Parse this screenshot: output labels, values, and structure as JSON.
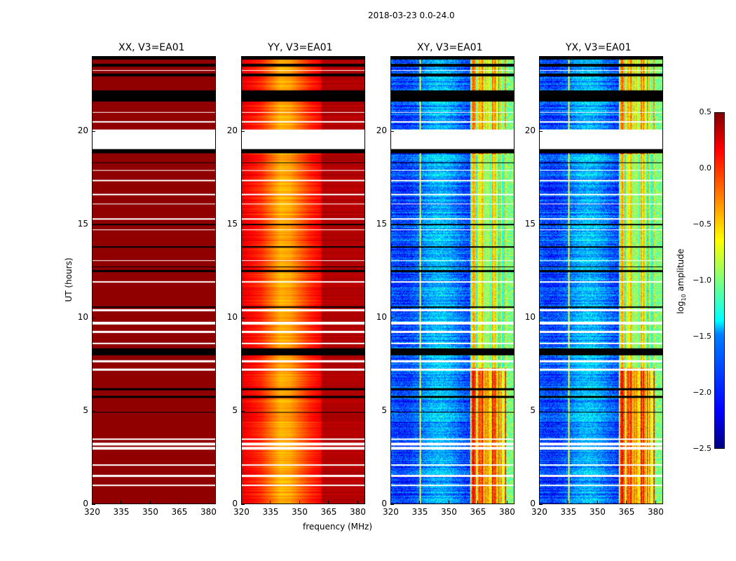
{
  "chart_data": {
    "type": "heatmap",
    "title": "2018-03-23 0.0-24.0",
    "xlabel": "frequency (MHz)",
    "ylabel": "UT (hours)",
    "xlim": [
      320,
      384
    ],
    "ylim": [
      0,
      24
    ],
    "xticks": [
      "320",
      "335",
      "350",
      "365",
      "380"
    ],
    "xtick_values": [
      320,
      335,
      350,
      365,
      380
    ],
    "yticks": [
      "0",
      "5",
      "10",
      "15",
      "20"
    ],
    "ytick_values": [
      0,
      5,
      10,
      15,
      20
    ],
    "colorbar": {
      "label_main": "log",
      "label_sub": "10",
      "label_rest": " amplitude",
      "range": [
        -2.5,
        0.5
      ],
      "ticks": [
        "0.5",
        "0.0",
        "−0.5",
        "−1.0",
        "−1.5",
        "−2.0",
        "−2.5"
      ],
      "tick_values": [
        0.5,
        0.0,
        -0.5,
        -1.0,
        -1.5,
        -2.0,
        -2.5
      ],
      "colormap": "jet"
    },
    "flagged_hours_white": [
      [
        19.05,
        20.1
      ],
      [
        0.95,
        1.05
      ],
      [
        1.45,
        1.55
      ],
      [
        2.05,
        2.12
      ],
      [
        2.9,
        3.05
      ],
      [
        3.15,
        3.3
      ],
      [
        3.45,
        3.5
      ],
      [
        7.15,
        7.25
      ],
      [
        7.6,
        7.7
      ],
      [
        8.6,
        8.65
      ],
      [
        9.2,
        9.3
      ],
      [
        9.65,
        9.8
      ],
      [
        10.35,
        10.45
      ],
      [
        11.9,
        11.95
      ],
      [
        13.05,
        13.1
      ],
      [
        14.7,
        14.75
      ],
      [
        15.25,
        15.35
      ],
      [
        16.1,
        16.15
      ],
      [
        16.6,
        16.65
      ],
      [
        17.35,
        17.4
      ],
      [
        17.9,
        17.95
      ],
      [
        20.5,
        20.55
      ],
      [
        21.0,
        21.05
      ],
      [
        23.25,
        23.3
      ]
    ],
    "flagged_hours_black": [
      [
        18.85,
        19.05
      ],
      [
        21.6,
        22.2
      ],
      [
        22.95,
        23.1
      ],
      [
        23.5,
        23.65
      ],
      [
        23.85,
        24.0
      ],
      [
        8.0,
        8.35
      ],
      [
        5.7,
        5.8
      ],
      [
        6.1,
        6.2
      ],
      [
        12.45,
        12.55
      ],
      [
        12.7,
        12.75
      ],
      [
        13.75,
        13.85
      ],
      [
        14.95,
        15.05
      ],
      [
        10.55,
        10.6
      ],
      [
        4.9,
        4.95
      ],
      [
        18.3,
        18.35
      ]
    ],
    "series": [
      {
        "name": "XX, V3=EA01",
        "description": "uniform",
        "level": 0.45
      },
      {
        "name": "YY, V3=EA01",
        "description": "bandpass",
        "profile_mhz": [
          320,
          330,
          340,
          345,
          355,
          361,
          362,
          384
        ],
        "profile_log_amp": [
          0.2,
          0.0,
          -0.4,
          -0.35,
          0.0,
          0.15,
          0.4,
          0.4
        ]
      },
      {
        "name": "XY, V3=EA01",
        "description": "cross",
        "base": -1.75,
        "rfi_band_mhz": [
          361,
          380
        ],
        "rfi_level": -0.3
      },
      {
        "name": "YX, V3=EA01",
        "description": "cross",
        "base": -1.75,
        "rfi_band_mhz": [
          361,
          380
        ],
        "rfi_level": -0.3
      }
    ]
  }
}
